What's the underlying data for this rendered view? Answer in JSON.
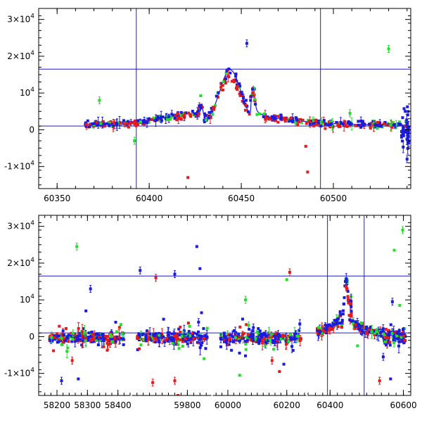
{
  "colors": {
    "red": "#e51b1b",
    "green": "#22e02b",
    "blue": "#1a1ae0",
    "lines": "#1a1acc"
  },
  "chart_data": [
    {
      "type": "scatter",
      "xlim": [
        60340,
        60542
      ],
      "ylim": [
        -16000,
        33000
      ],
      "x_ticks": [
        {
          "v": 60350,
          "label": "60350"
        },
        {
          "v": 60400,
          "label": "60400"
        },
        {
          "v": 60450,
          "label": "60450"
        },
        {
          "v": 60500,
          "label": "60500"
        }
      ],
      "y_ticks": [
        {
          "v": -10000,
          "base": "-1×10",
          "exp": "4"
        },
        {
          "v": 0,
          "base": "0",
          "exp": ""
        },
        {
          "v": 10000,
          "base": "10",
          "exp": "4"
        },
        {
          "v": 20000,
          "base": "2×10",
          "exp": "4"
        },
        {
          "v": 30000,
          "base": "3×10",
          "exp": "4"
        }
      ],
      "hlines": [
        16500,
        1000
      ],
      "vlines": [
        60393,
        60493
      ],
      "grid": false,
      "outliers": [
        {
          "x": 60373,
          "y": 8000,
          "color": "green"
        },
        {
          "x": 60392,
          "y": -3000,
          "color": "green"
        },
        {
          "x": 60421,
          "y": -13000,
          "color": "red"
        },
        {
          "x": 60453,
          "y": 23500,
          "color": "blue"
        },
        {
          "x": 60485,
          "y": -4500,
          "color": "red"
        },
        {
          "x": 60486,
          "y": -11500,
          "color": "red"
        },
        {
          "x": 60509,
          "y": 4500,
          "color": "green"
        },
        {
          "x": 60530,
          "y": 22000,
          "color": "green"
        },
        {
          "x": 60540,
          "y": -8000,
          "color": "blue"
        }
      ]
    },
    {
      "type": "scatter",
      "segments": [
        {
          "xlim": [
            58140,
            58440
          ],
          "x_ticks": [
            {
              "v": 58200,
              "label": "58200"
            },
            {
              "v": 58300,
              "label": "58300"
            },
            {
              "v": 58400,
              "label": "58400"
            }
          ]
        },
        {
          "xlim": [
            59625,
            59875
          ],
          "x_ticks": [
            {
              "v": 59800,
              "label": "59800"
            }
          ]
        },
        {
          "xlim": [
            59950,
            60265
          ],
          "x_ticks": [
            {
              "v": 60000,
              "label": "60000"
            },
            {
              "v": 60200,
              "label": "60200"
            }
          ]
        },
        {
          "xlim": [
            60340,
            60620
          ],
          "x_ticks": [
            {
              "v": 60400,
              "label": "60400"
            },
            {
              "v": 60600,
              "label": "60600"
            }
          ]
        }
      ],
      "ylim": [
        -16000,
        33000
      ],
      "y_ticks": [
        {
          "v": -10000,
          "base": "-1×10",
          "exp": "4"
        },
        {
          "v": 0,
          "base": "0",
          "exp": ""
        },
        {
          "v": 10000,
          "base": "10",
          "exp": "4"
        },
        {
          "v": 20000,
          "base": "2×10",
          "exp": "4"
        },
        {
          "v": 30000,
          "base": "3×10",
          "exp": "4"
        }
      ],
      "hlines": [
        16500,
        1000
      ],
      "vlines": [
        60393,
        60493
      ],
      "grid": false,
      "outliers": [
        {
          "x": 58265,
          "y": 24500,
          "color": "green"
        },
        {
          "x": 58310,
          "y": 13000,
          "color": "blue"
        },
        {
          "x": 58295,
          "y": 7000,
          "color": "blue"
        },
        {
          "x": 58215,
          "y": -12000,
          "color": "blue"
        },
        {
          "x": 58270,
          "y": -11500,
          "color": "blue"
        },
        {
          "x": 58250,
          "y": -6500,
          "color": "red"
        },
        {
          "x": 59650,
          "y": 18000,
          "color": "blue"
        },
        {
          "x": 59700,
          "y": 16000,
          "color": "red"
        },
        {
          "x": 59760,
          "y": 17000,
          "color": "blue"
        },
        {
          "x": 59830,
          "y": 24500,
          "color": "blue"
        },
        {
          "x": 59840,
          "y": 18500,
          "color": "blue"
        },
        {
          "x": 59845,
          "y": 6500,
          "color": "blue"
        },
        {
          "x": 59760,
          "y": -12000,
          "color": "red"
        },
        {
          "x": 59770,
          "y": -16000,
          "color": "red"
        },
        {
          "x": 59690,
          "y": -12500,
          "color": "red"
        },
        {
          "x": 60210,
          "y": 17500,
          "color": "red"
        },
        {
          "x": 60200,
          "y": 15500,
          "color": "green"
        },
        {
          "x": 60060,
          "y": 10000,
          "color": "green"
        },
        {
          "x": 60040,
          "y": -10500,
          "color": "green"
        },
        {
          "x": 60150,
          "y": -6500,
          "color": "red"
        },
        {
          "x": 60175,
          "y": -9500,
          "color": "red"
        },
        {
          "x": 60190,
          "y": -7500,
          "color": "blue"
        },
        {
          "x": 60575,
          "y": 23500,
          "color": "green"
        },
        {
          "x": 60598,
          "y": 29000,
          "color": "green"
        },
        {
          "x": 60570,
          "y": 9500,
          "color": "blue"
        },
        {
          "x": 60590,
          "y": 8500,
          "color": "green"
        },
        {
          "x": 60545,
          "y": -5500,
          "color": "blue"
        },
        {
          "x": 60565,
          "y": -11500,
          "color": "blue"
        },
        {
          "x": 60535,
          "y": -12000,
          "color": "red"
        },
        {
          "x": 60475,
          "y": -2500,
          "color": "green"
        }
      ]
    }
  ]
}
